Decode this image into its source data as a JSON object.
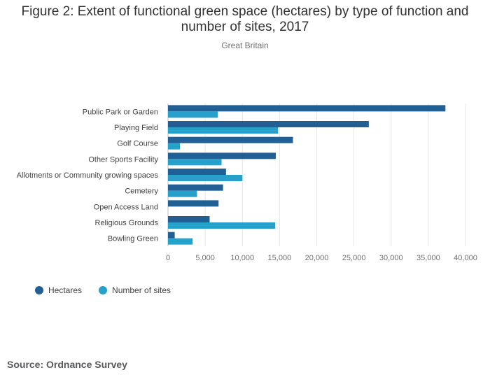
{
  "header": {
    "title_line1": "Figure 2: Extent of functional green space (hectares) by type of function and",
    "title_line2": "number of sites, 2017",
    "subtitle": "Great Britain"
  },
  "legend": {
    "items": [
      {
        "label": "Hectares",
        "color": "#206095"
      },
      {
        "label": "Number of sites",
        "color": "#27a0cc"
      }
    ]
  },
  "footer": {
    "source": "Source: Ordnance Survey"
  },
  "chart_data": {
    "type": "bar",
    "orientation": "horizontal",
    "categories": [
      "Public Park or Garden",
      "Playing Field",
      "Golf Course",
      "Other Sports Facility",
      "Allotments or Community growing spaces",
      "Cemetery",
      "Open Access Land",
      "Religious Grounds",
      "Bowling Green"
    ],
    "series": [
      {
        "name": "Hectares",
        "color": "#206095",
        "values": [
          37300,
          27000,
          16800,
          14500,
          7800,
          7400,
          6800,
          5600,
          900
        ]
      },
      {
        "name": "Number of sites",
        "color": "#27a0cc",
        "values": [
          6700,
          14800,
          1600,
          7200,
          10000,
          3900,
          0,
          14400,
          3300
        ]
      }
    ],
    "xlim": [
      0,
      40000
    ],
    "xticks": [
      0,
      5000,
      10000,
      15000,
      20000,
      25000,
      30000,
      35000,
      40000
    ],
    "xtick_labels": [
      "0",
      "5,000",
      "10,000",
      "15,000",
      "20,000",
      "25,000",
      "30,000",
      "35,000",
      "40,000"
    ],
    "grid": true,
    "legend_position": "bottom-left"
  }
}
